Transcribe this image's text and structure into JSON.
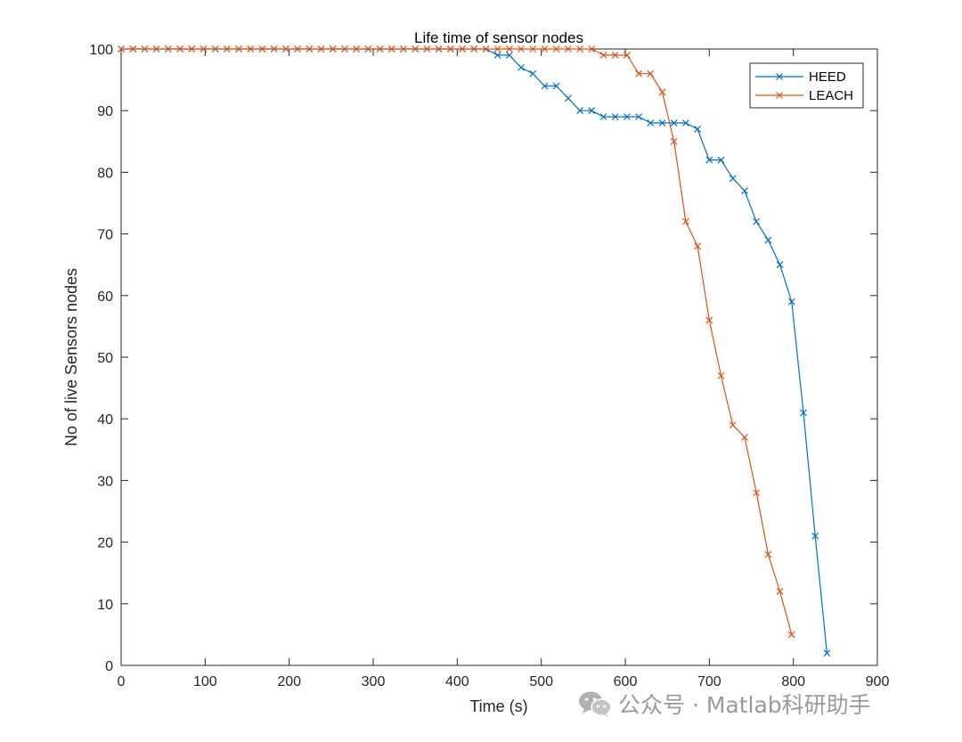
{
  "chart_data": {
    "type": "line",
    "title": "Life time of sensor nodes",
    "xlabel": "Time (s)",
    "ylabel": "No of live Sensors nodes",
    "xlim": [
      0,
      900
    ],
    "ylim": [
      0,
      100
    ],
    "xticks": [
      "0",
      "100",
      "200",
      "300",
      "400",
      "500",
      "600",
      "700",
      "800",
      "900"
    ],
    "yticks": [
      "0",
      "10",
      "20",
      "30",
      "40",
      "50",
      "60",
      "70",
      "80",
      "90",
      "100"
    ],
    "grid": false,
    "legend_position": "top-right",
    "marker": "x",
    "series": [
      {
        "name": "HEED",
        "color": "#0072BD",
        "x": [
          0,
          14,
          28,
          42,
          56,
          70,
          84,
          98,
          112,
          126,
          140,
          154,
          168,
          182,
          196,
          210,
          224,
          238,
          252,
          266,
          280,
          294,
          308,
          322,
          336,
          350,
          364,
          378,
          392,
          406,
          420,
          434,
          448,
          462,
          476,
          490,
          504,
          518,
          532,
          546,
          560,
          574,
          588,
          602,
          616,
          630,
          644,
          658,
          672,
          686,
          700,
          714,
          728,
          742,
          756,
          770,
          784,
          798,
          812,
          826,
          840
        ],
        "y": [
          100,
          100,
          100,
          100,
          100,
          100,
          100,
          100,
          100,
          100,
          100,
          100,
          100,
          100,
          100,
          100,
          100,
          100,
          100,
          100,
          100,
          100,
          100,
          100,
          100,
          100,
          100,
          100,
          100,
          100,
          100,
          100,
          99,
          99,
          97,
          96,
          94,
          94,
          92,
          90,
          90,
          89,
          89,
          89,
          89,
          88,
          88,
          88,
          88,
          87,
          82,
          82,
          79,
          77,
          72,
          69,
          65,
          59,
          41,
          21,
          2
        ]
      },
      {
        "name": "LEACH",
        "color": "#D95319",
        "x": [
          0,
          14,
          28,
          42,
          56,
          70,
          84,
          98,
          112,
          126,
          140,
          154,
          168,
          182,
          196,
          210,
          224,
          238,
          252,
          266,
          280,
          294,
          308,
          322,
          336,
          350,
          364,
          378,
          392,
          406,
          420,
          434,
          448,
          462,
          476,
          490,
          504,
          518,
          532,
          546,
          560,
          574,
          588,
          602,
          616,
          630,
          644,
          658,
          672,
          686,
          700,
          714,
          728,
          742,
          756,
          770,
          784,
          798
        ],
        "y": [
          100,
          100,
          100,
          100,
          100,
          100,
          100,
          100,
          100,
          100,
          100,
          100,
          100,
          100,
          100,
          100,
          100,
          100,
          100,
          100,
          100,
          100,
          100,
          100,
          100,
          100,
          100,
          100,
          100,
          100,
          100,
          100,
          100,
          100,
          100,
          100,
          100,
          100,
          100,
          100,
          100,
          99,
          99,
          99,
          96,
          96,
          93,
          85,
          72,
          68,
          56,
          47,
          39,
          37,
          28,
          18,
          12,
          5
        ]
      }
    ]
  },
  "watermark": {
    "text": "公众号 · Matlab科研助手",
    "icon": "wechat-icon"
  }
}
